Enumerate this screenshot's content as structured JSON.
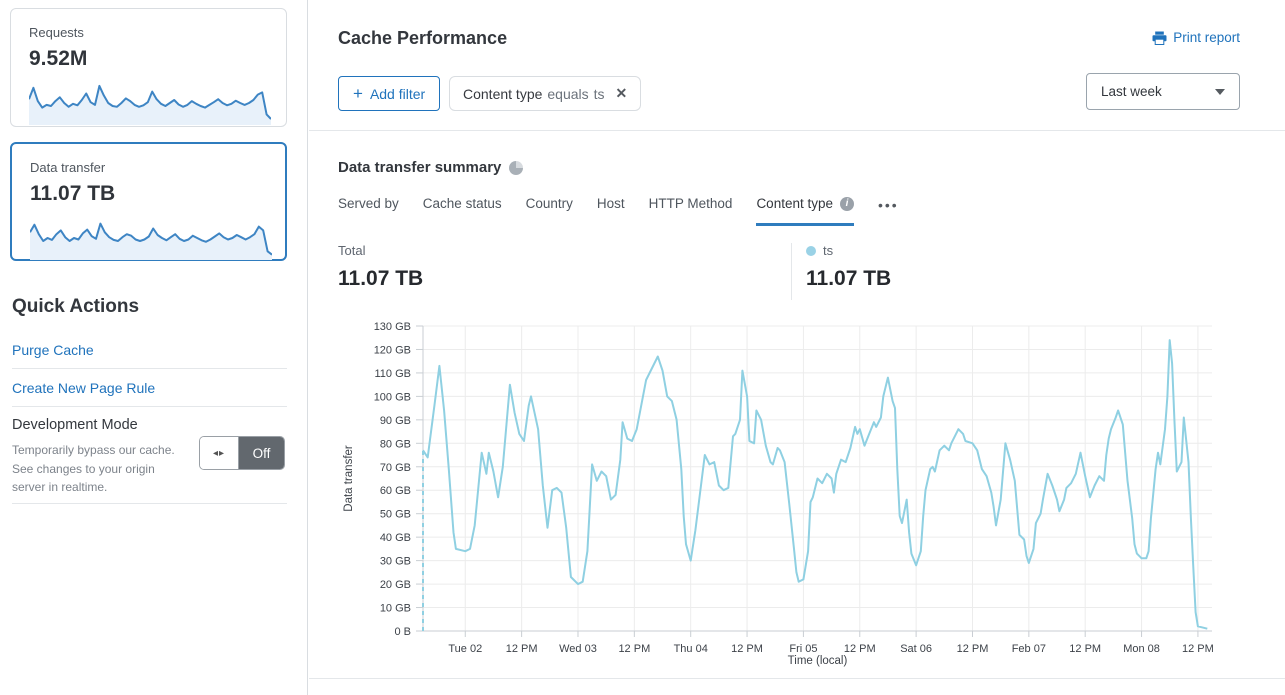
{
  "colors": {
    "accent_blue": "#2073bc",
    "selected_border": "#2f7cbe",
    "spark_stroke": "#3e85c4",
    "spark_fill": "#e8f1fa",
    "chart_line": "#8fd0e2",
    "legend_dot": "#9ad2e6"
  },
  "sidebar": {
    "cards": [
      {
        "label": "Requests",
        "value": "9.52M",
        "selected": false,
        "spark": [
          60,
          90,
          55,
          38,
          45,
          42,
          55,
          65,
          50,
          40,
          48,
          44,
          58,
          75,
          52,
          45,
          95,
          70,
          50,
          42,
          40,
          50,
          62,
          55,
          45,
          40,
          44,
          52,
          80,
          60,
          48,
          42,
          50,
          58,
          46,
          40,
          45,
          55,
          48,
          42,
          38,
          45,
          52,
          60,
          50,
          44,
          48,
          56,
          50,
          45,
          50,
          58,
          72,
          78,
          20,
          8
        ]
      },
      {
        "label": "Data transfer",
        "value": "11.07 TB",
        "selected": true,
        "spark": [
          65,
          85,
          60,
          42,
          50,
          45,
          60,
          70,
          52,
          42,
          50,
          46,
          62,
          72,
          55,
          48,
          88,
          65,
          52,
          45,
          42,
          52,
          60,
          56,
          46,
          42,
          46,
          54,
          75,
          58,
          50,
          44,
          52,
          60,
          48,
          42,
          46,
          56,
          50,
          44,
          40,
          46,
          54,
          62,
          52,
          46,
          50,
          58,
          52,
          46,
          52,
          60,
          80,
          70,
          15,
          6
        ]
      }
    ],
    "quick_actions": {
      "title": "Quick Actions",
      "links": [
        {
          "label": "Purge Cache"
        },
        {
          "label": "Create New Page Rule"
        }
      ],
      "dev_mode": {
        "label": "Development Mode",
        "description": "Temporarily bypass our cache. See changes to your origin server in realtime.",
        "toggle_state": "Off"
      }
    }
  },
  "header": {
    "title": "Cache Performance",
    "print_label": "Print report",
    "add_filter_label": "Add filter",
    "filter_chip": {
      "field": "Content type",
      "operator": "equals",
      "value": "ts",
      "close": "✕"
    },
    "time_range": "Last week"
  },
  "summary": {
    "title": "Data transfer summary",
    "tabs": [
      {
        "label": "Served by"
      },
      {
        "label": "Cache status"
      },
      {
        "label": "Country"
      },
      {
        "label": "Host"
      },
      {
        "label": "HTTP Method"
      },
      {
        "label": "Content type",
        "active": true,
        "info": true
      }
    ],
    "more_label": "•••",
    "total_label": "Total",
    "total_value": "11.07 TB",
    "legend": {
      "series": "ts",
      "value": "11.07 TB"
    }
  },
  "chart_data": {
    "type": "line",
    "title": "Data transfer summary",
    "xlabel": "Time (local)",
    "ylabel": "Data transfer",
    "unit": "GB",
    "ylim": [
      0,
      130
    ],
    "yticks": [
      "0 B",
      "10 GB",
      "20 GB",
      "30 GB",
      "40 GB",
      "50 GB",
      "60 GB",
      "70 GB",
      "80 GB",
      "90 GB",
      "100 GB",
      "110 GB",
      "120 GB",
      "130 GB"
    ],
    "xspan_hours": 168,
    "xticks": [
      {
        "label": "Tue 02",
        "hour": 9
      },
      {
        "label": "12 PM",
        "hour": 21
      },
      {
        "label": "Wed 03",
        "hour": 33
      },
      {
        "label": "12 PM",
        "hour": 45
      },
      {
        "label": "Thu 04",
        "hour": 57
      },
      {
        "label": "12 PM",
        "hour": 69
      },
      {
        "label": "Fri 05",
        "hour": 81
      },
      {
        "label": "12 PM",
        "hour": 93
      },
      {
        "label": "Sat 06",
        "hour": 105
      },
      {
        "label": "12 PM",
        "hour": 117
      },
      {
        "label": "Feb 07",
        "hour": 129
      },
      {
        "label": "12 PM",
        "hour": 141
      },
      {
        "label": "Mon 08",
        "hour": 153
      },
      {
        "label": "12 PM",
        "hour": 165
      }
    ],
    "grid": true,
    "legend_position": "top-right",
    "dashed_start": true,
    "series": [
      {
        "name": "ts",
        "color": "#8fd0e2",
        "points": [
          [
            0,
            77
          ],
          [
            1,
            74
          ],
          [
            2.5,
            97
          ],
          [
            3.5,
            113
          ],
          [
            4.5,
            94
          ],
          [
            5.5,
            69
          ],
          [
            6.5,
            42
          ],
          [
            7,
            35
          ],
          [
            9,
            34
          ],
          [
            10,
            35
          ],
          [
            11,
            45
          ],
          [
            12.5,
            76
          ],
          [
            13.5,
            67
          ],
          [
            14,
            76
          ],
          [
            15,
            68
          ],
          [
            16,
            57
          ],
          [
            17,
            70
          ],
          [
            18.5,
            105
          ],
          [
            19.5,
            93
          ],
          [
            20.5,
            84
          ],
          [
            21.5,
            81
          ],
          [
            22.5,
            96
          ],
          [
            23,
            100
          ],
          [
            24.5,
            86
          ],
          [
            25.5,
            62
          ],
          [
            26.5,
            44
          ],
          [
            27.5,
            60
          ],
          [
            28.5,
            61
          ],
          [
            29.5,
            59
          ],
          [
            30.5,
            44
          ],
          [
            31.5,
            23
          ],
          [
            33,
            20
          ],
          [
            34,
            21
          ],
          [
            35,
            34
          ],
          [
            36,
            71
          ],
          [
            37,
            64
          ],
          [
            38,
            68
          ],
          [
            39,
            66
          ],
          [
            40,
            56
          ],
          [
            41,
            58
          ],
          [
            42,
            73
          ],
          [
            42.5,
            89
          ],
          [
            43.5,
            82
          ],
          [
            44.5,
            81
          ],
          [
            45.5,
            86
          ],
          [
            47.5,
            107
          ],
          [
            50,
            117
          ],
          [
            51,
            111
          ],
          [
            52,
            100
          ],
          [
            53,
            98
          ],
          [
            54,
            90
          ],
          [
            55,
            69
          ],
          [
            55.5,
            49
          ],
          [
            56,
            37
          ],
          [
            57,
            30
          ],
          [
            58,
            43
          ],
          [
            60,
            75
          ],
          [
            61,
            71
          ],
          [
            62,
            72
          ],
          [
            63,
            62
          ],
          [
            64,
            60
          ],
          [
            65,
            61
          ],
          [
            66,
            83
          ],
          [
            66.5,
            84
          ],
          [
            67.5,
            90
          ],
          [
            68,
            111
          ],
          [
            69,
            100
          ],
          [
            69.5,
            81
          ],
          [
            70.5,
            80
          ],
          [
            71,
            94
          ],
          [
            72,
            90
          ],
          [
            73,
            79
          ],
          [
            74,
            72
          ],
          [
            74.5,
            71
          ],
          [
            75.5,
            78
          ],
          [
            76,
            77
          ],
          [
            77,
            72
          ],
          [
            78,
            54
          ],
          [
            79,
            35
          ],
          [
            79.5,
            25
          ],
          [
            80,
            21
          ],
          [
            81,
            22
          ],
          [
            82,
            34
          ],
          [
            82.5,
            55
          ],
          [
            83,
            57
          ],
          [
            84,
            65
          ],
          [
            85,
            63
          ],
          [
            86,
            67
          ],
          [
            87,
            65
          ],
          [
            87.5,
            59
          ],
          [
            88,
            67
          ],
          [
            89,
            73
          ],
          [
            90,
            72
          ],
          [
            91,
            78
          ],
          [
            92,
            87
          ],
          [
            92.5,
            84
          ],
          [
            93,
            86
          ],
          [
            94,
            79
          ],
          [
            95,
            84
          ],
          [
            96,
            89
          ],
          [
            96.5,
            87
          ],
          [
            97.5,
            91
          ],
          [
            98,
            100
          ],
          [
            99,
            108
          ],
          [
            100,
            98
          ],
          [
            100.5,
            95
          ],
          [
            101,
            69
          ],
          [
            101.5,
            49
          ],
          [
            102,
            46
          ],
          [
            103,
            56
          ],
          [
            103.5,
            42
          ],
          [
            104,
            33
          ],
          [
            105,
            28
          ],
          [
            106,
            34
          ],
          [
            106.5,
            49
          ],
          [
            107,
            60
          ],
          [
            108,
            69
          ],
          [
            108.5,
            70
          ],
          [
            109,
            68
          ],
          [
            110,
            77
          ],
          [
            111,
            79
          ],
          [
            112,
            77
          ],
          [
            112.5,
            80
          ],
          [
            114,
            86
          ],
          [
            115,
            84
          ],
          [
            115.5,
            81
          ],
          [
            117,
            80
          ],
          [
            118,
            77
          ],
          [
            119,
            69
          ],
          [
            120,
            66
          ],
          [
            121,
            59
          ],
          [
            121.5,
            53
          ],
          [
            122,
            45
          ],
          [
            123,
            56
          ],
          [
            124,
            80
          ],
          [
            125,
            73
          ],
          [
            126,
            64
          ],
          [
            127,
            41
          ],
          [
            128,
            39
          ],
          [
            128.5,
            32
          ],
          [
            129,
            29
          ],
          [
            130,
            35
          ],
          [
            130.5,
            46
          ],
          [
            131.5,
            50
          ],
          [
            132,
            56
          ],
          [
            133,
            67
          ],
          [
            134,
            62
          ],
          [
            135,
            56
          ],
          [
            135.5,
            51
          ],
          [
            136.5,
            56
          ],
          [
            137,
            61
          ],
          [
            138,
            63
          ],
          [
            139,
            67
          ],
          [
            140,
            76
          ],
          [
            141,
            66
          ],
          [
            142,
            57
          ],
          [
            143,
            62
          ],
          [
            144,
            66
          ],
          [
            145,
            64
          ],
          [
            145.5,
            75
          ],
          [
            146,
            82
          ],
          [
            146.5,
            86
          ],
          [
            147.5,
            91
          ],
          [
            148,
            94
          ],
          [
            149,
            88
          ],
          [
            150,
            64
          ],
          [
            151,
            48
          ],
          [
            151.5,
            37
          ],
          [
            152,
            33
          ],
          [
            153,
            31
          ],
          [
            154,
            31
          ],
          [
            154.5,
            34
          ],
          [
            155,
            48
          ],
          [
            156,
            69
          ],
          [
            156.5,
            76
          ],
          [
            157,
            71
          ],
          [
            158,
            86
          ],
          [
            158.5,
            100
          ],
          [
            159,
            124
          ],
          [
            159.5,
            114
          ],
          [
            160,
            90
          ],
          [
            160.5,
            68
          ],
          [
            161.5,
            72
          ],
          [
            162,
            91
          ],
          [
            163,
            72
          ],
          [
            163.5,
            48
          ],
          [
            164,
            28
          ],
          [
            164.5,
            8
          ],
          [
            165,
            2
          ],
          [
            167,
            1
          ]
        ]
      }
    ]
  }
}
